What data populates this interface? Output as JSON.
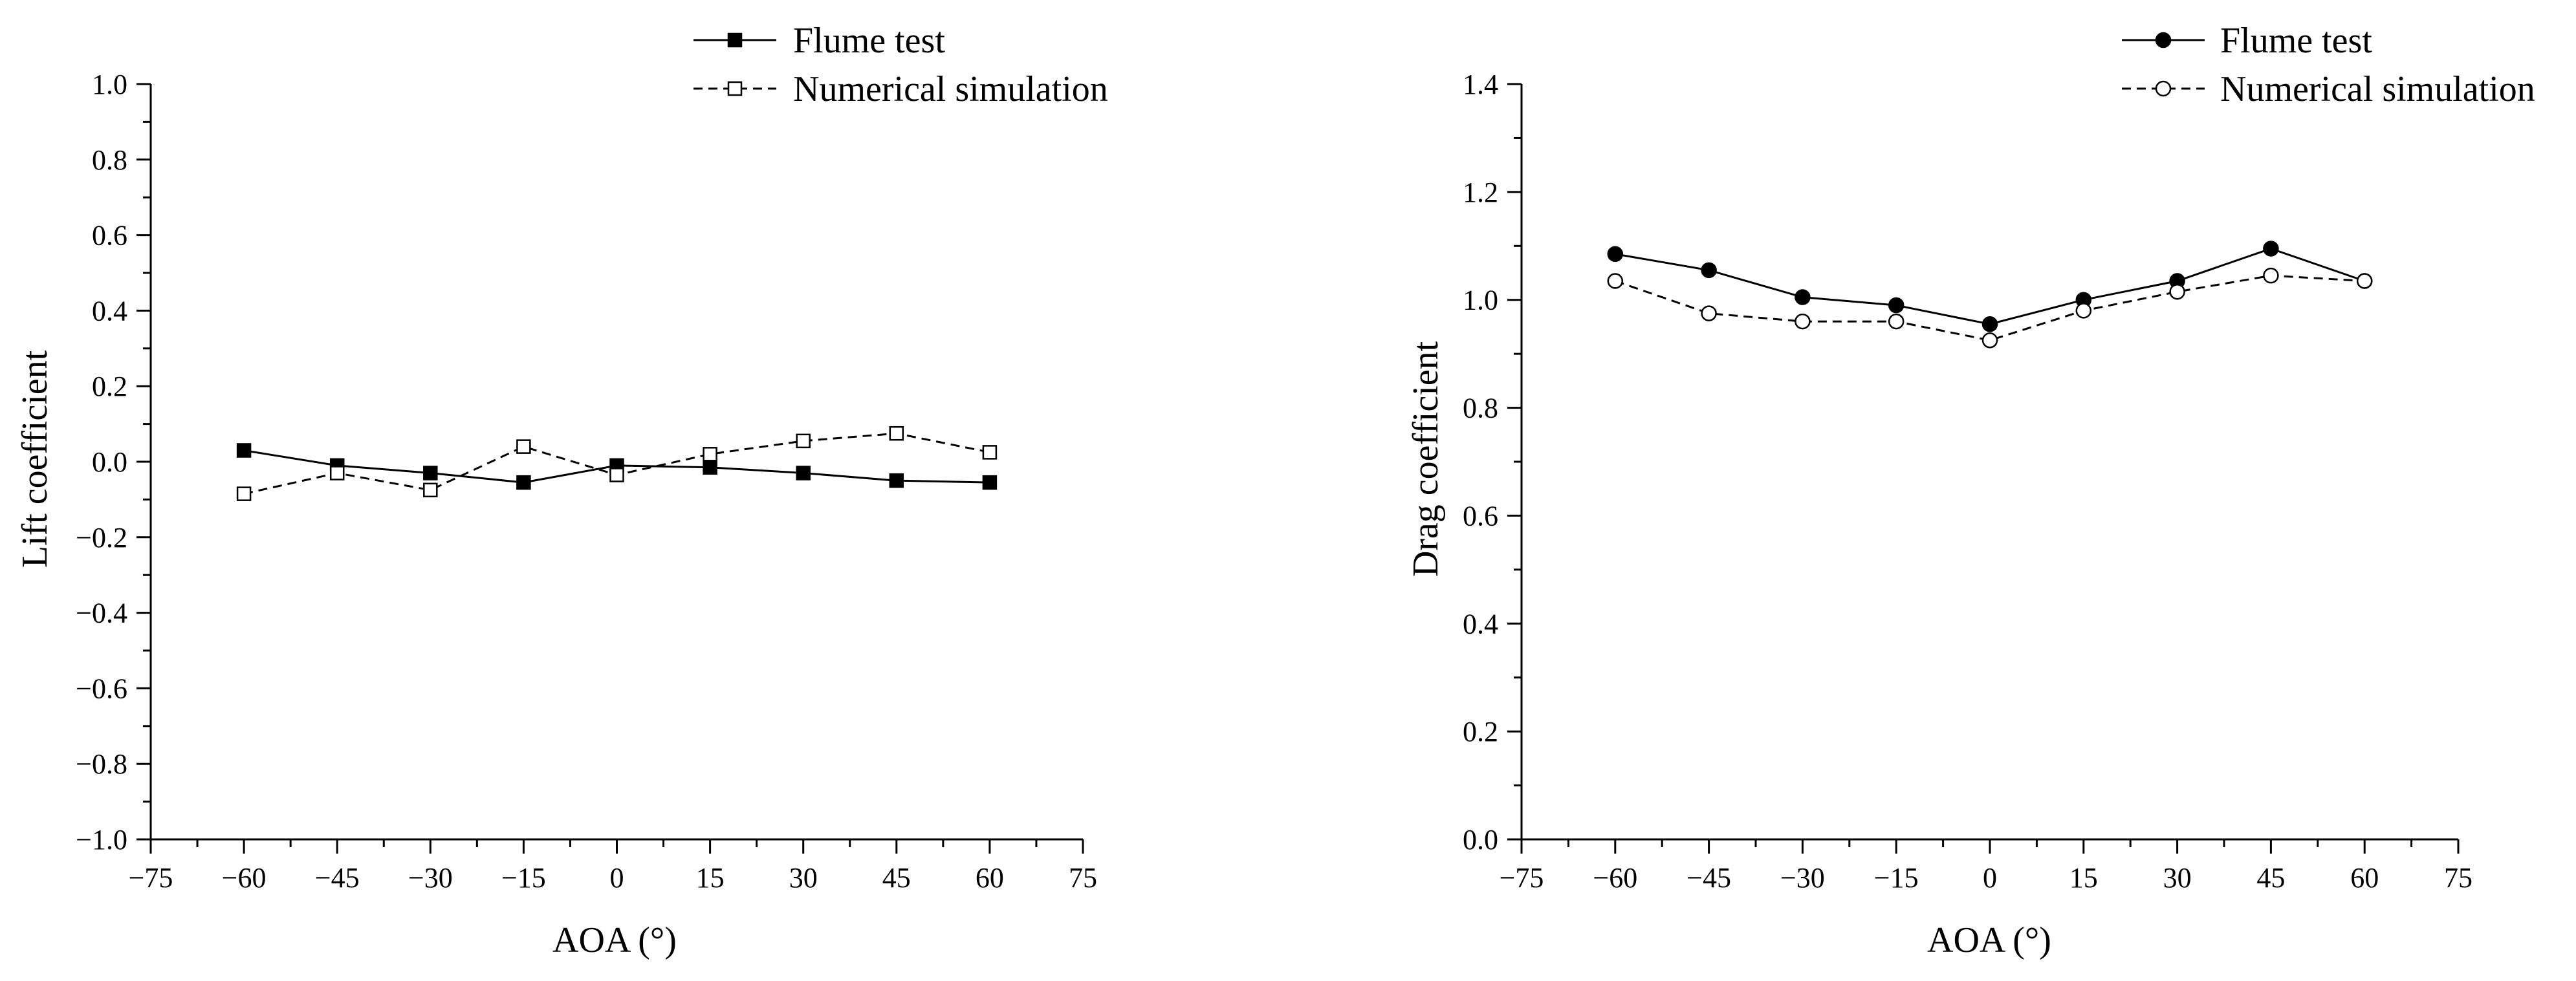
{
  "figure": {
    "colors": {
      "ink": "#000000",
      "background": "#ffffff",
      "hollow_fill": "#ffffff"
    }
  },
  "chart_data": [
    {
      "id": "lift",
      "type": "line",
      "xlabel": "AOA (°)",
      "ylabel": "Lift coefficient",
      "xlim": [
        -75,
        75
      ],
      "ylim": [
        -1.0,
        1.0
      ],
      "xticks": [
        -75,
        -60,
        -45,
        -30,
        -15,
        0,
        15,
        30,
        45,
        60,
        75
      ],
      "xtick_labels": [
        "−75",
        "−60",
        "−45",
        "−30",
        "−15",
        "0",
        "15",
        "30",
        "45",
        "60",
        "75"
      ],
      "yticks": [
        -1.0,
        -0.8,
        -0.6,
        -0.4,
        -0.2,
        0.0,
        0.2,
        0.4,
        0.6,
        0.8,
        1.0
      ],
      "ytick_labels": [
        "−1.0",
        "−0.8",
        "−0.6",
        "−0.4",
        "−0.2",
        "0.0",
        "0.2",
        "0.4",
        "0.6",
        "0.8",
        "1.0"
      ],
      "grid": false,
      "legend_position": "top-right",
      "x": [
        -60,
        -45,
        -30,
        -15,
        0,
        15,
        30,
        45,
        60
      ],
      "series": [
        {
          "name": "Flume test",
          "line_style": "solid",
          "marker": "square",
          "filled": true,
          "values": [
            0.03,
            -0.01,
            -0.03,
            -0.055,
            -0.01,
            -0.015,
            -0.03,
            -0.05,
            -0.055
          ]
        },
        {
          "name": "Numerical simulation",
          "line_style": "dashed",
          "marker": "square",
          "filled": false,
          "values": [
            -0.085,
            -0.03,
            -0.075,
            0.04,
            -0.035,
            0.02,
            0.055,
            0.075,
            0.025
          ]
        }
      ]
    },
    {
      "id": "drag",
      "type": "line",
      "xlabel": "AOA (°)",
      "ylabel": "Drag coefficient",
      "xlim": [
        -75,
        75
      ],
      "ylim": [
        0.0,
        1.4
      ],
      "xticks": [
        -75,
        -60,
        -45,
        -30,
        -15,
        0,
        15,
        30,
        45,
        60,
        75
      ],
      "xtick_labels": [
        "−75",
        "−60",
        "−45",
        "−30",
        "−15",
        "0",
        "15",
        "30",
        "45",
        "60",
        "75"
      ],
      "yticks": [
        0.0,
        0.2,
        0.4,
        0.6,
        0.8,
        1.0,
        1.2,
        1.4
      ],
      "ytick_labels": [
        "0.0",
        "0.2",
        "0.4",
        "0.6",
        "0.8",
        "1.0",
        "1.2",
        "1.4"
      ],
      "grid": false,
      "legend_position": "top-right",
      "x": [
        -60,
        -45,
        -30,
        -15,
        0,
        15,
        30,
        45,
        60
      ],
      "series": [
        {
          "name": "Flume test",
          "line_style": "solid",
          "marker": "circle",
          "filled": true,
          "values": [
            1.085,
            1.055,
            1.005,
            0.99,
            0.955,
            1.0,
            1.035,
            1.095,
            1.035
          ]
        },
        {
          "name": "Numerical simulation",
          "line_style": "dashed",
          "marker": "circle",
          "filled": false,
          "values": [
            1.035,
            0.975,
            0.96,
            0.96,
            0.925,
            0.98,
            1.015,
            1.045,
            1.035
          ]
        }
      ]
    }
  ]
}
